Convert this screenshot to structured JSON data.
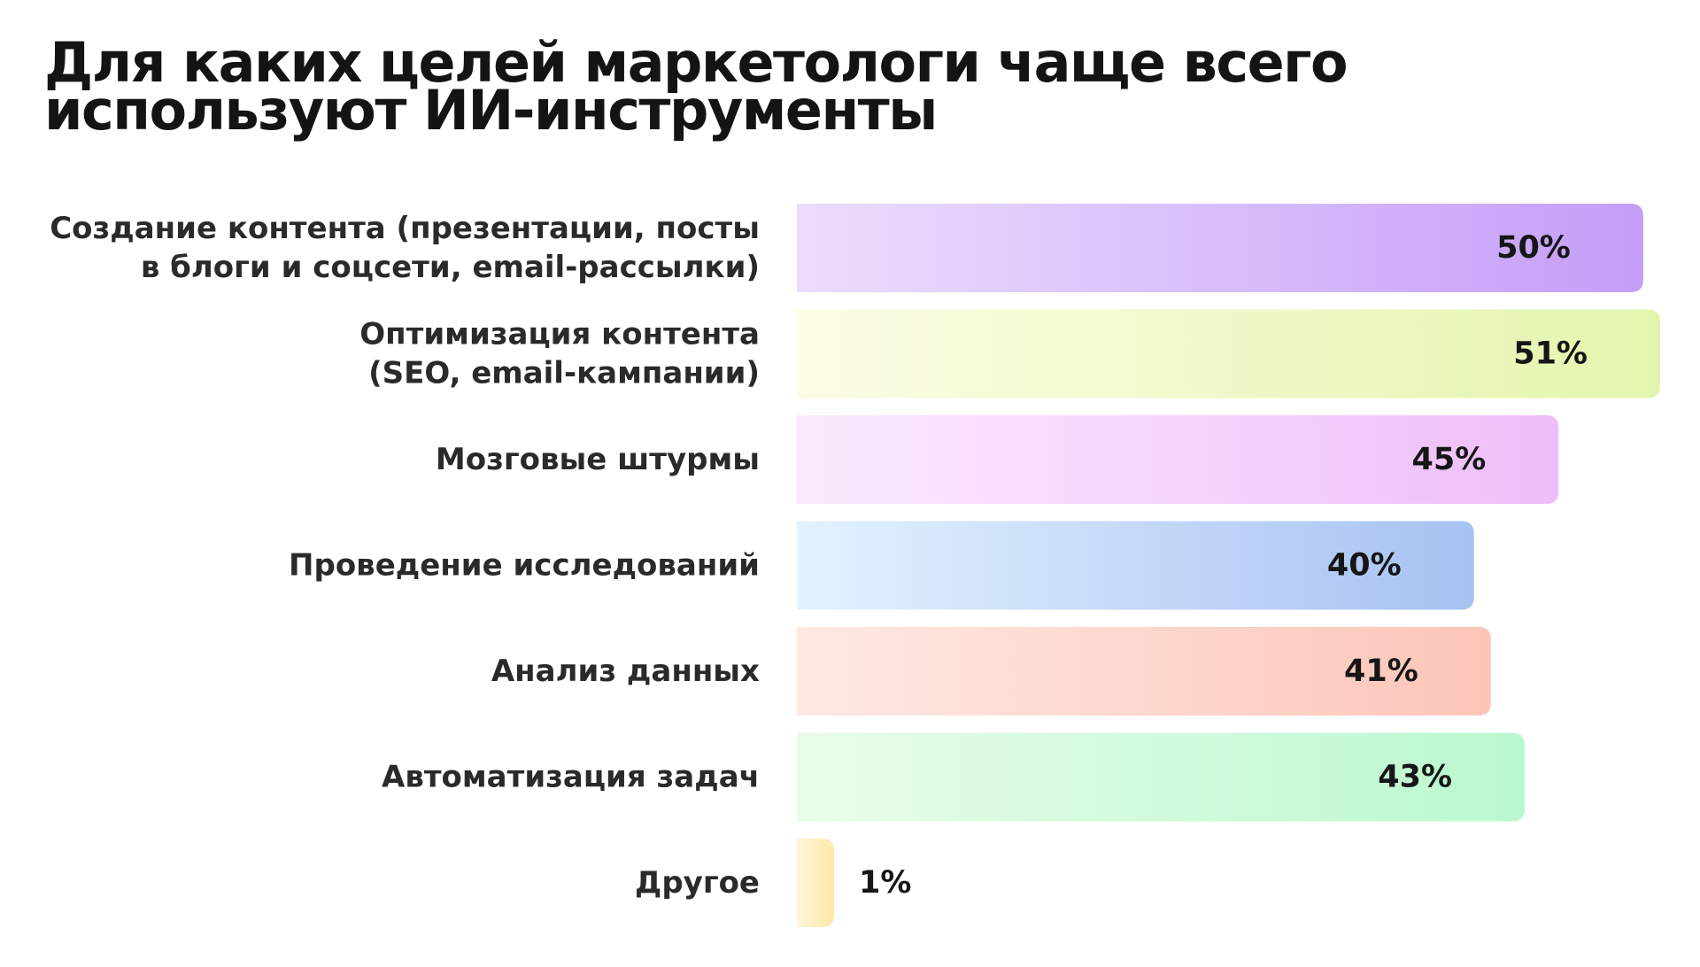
{
  "chart_data": {
    "type": "bar",
    "orientation": "horizontal",
    "title": "Для каких целей маркетологи чаще всего используют ИИ-инструменты",
    "title_lines": [
      "Для каких целей маркетологи чаще всего",
      "используют ИИ-инструменты"
    ],
    "categories": [
      [
        "Создание контента (презентации, посты",
        "в блоги и соцсети, email-рассылки)"
      ],
      [
        "Оптимизация контента",
        "(SEO, email-кампании)"
      ],
      [
        "Мозговые штурмы"
      ],
      [
        "Проведение исследований"
      ],
      [
        "Анализ данных"
      ],
      [
        "Автоматизация задач"
      ],
      [
        "Другое"
      ]
    ],
    "values": [
      50,
      51,
      45,
      40,
      41,
      43,
      1
    ],
    "value_labels": [
      "50%",
      "51%",
      "45%",
      "40%",
      "41%",
      "43%",
      "1%"
    ],
    "bar_colors": [
      [
        "#ecdcfc",
        "#c49ef8"
      ],
      [
        "#fbfde4",
        "#e3f5ad"
      ],
      [
        "#fbeaff",
        "#eebef9"
      ],
      [
        "#e2f2ff",
        "#a7c1f1"
      ],
      [
        "#fee9e3",
        "#fcc5b8"
      ],
      [
        "#e9fde9",
        "#b9f8cf"
      ],
      [
        "#fdf6d8",
        "#fde9a6"
      ]
    ],
    "xlim": [
      0,
      51
    ],
    "grid": false,
    "legend": "none"
  }
}
